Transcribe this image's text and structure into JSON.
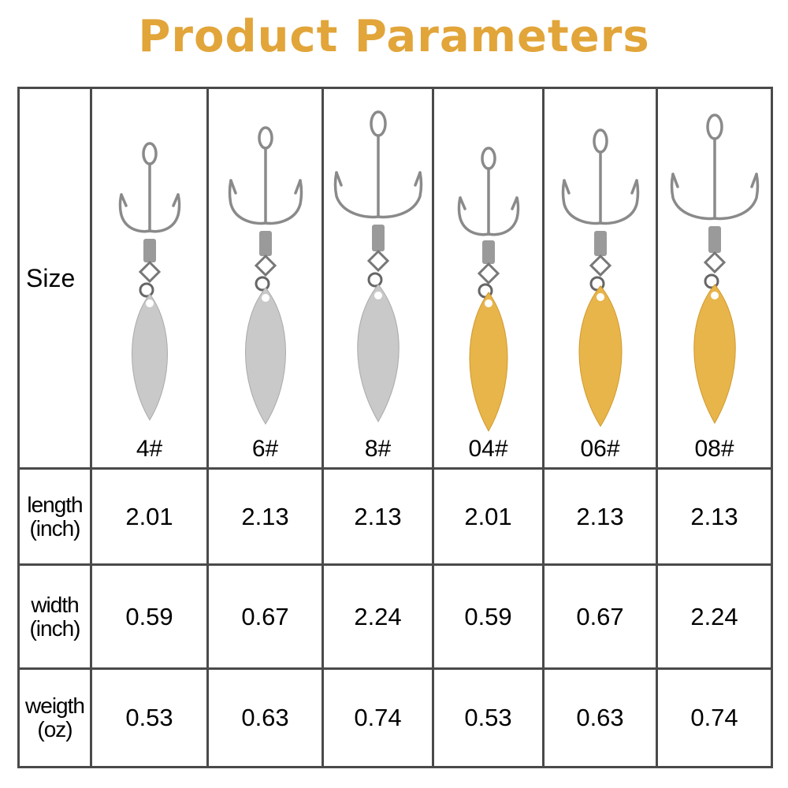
{
  "title": "Product Parameters",
  "colors": {
    "title": "#e2a53a",
    "silver_blade": "#c9c9c9",
    "gold_blade": "#e8b54a",
    "border": "#4a4a4a"
  },
  "row_headers": {
    "size": "Size",
    "length_line1": "length",
    "length_line2": "(inch)",
    "width_line1": "width",
    "width_line2": "(inch)",
    "weight_line1": "weigth",
    "weight_line2": "(oz)"
  },
  "columns": [
    {
      "size": "4#",
      "finish": "silver",
      "length": "2.01",
      "width": "0.59",
      "weight": "0.53"
    },
    {
      "size": "6#",
      "finish": "silver",
      "length": "2.13",
      "width": "0.67",
      "weight": "0.63"
    },
    {
      "size": "8#",
      "finish": "silver",
      "length": "2.13",
      "width": "2.24",
      "weight": "0.74"
    },
    {
      "size": "04#",
      "finish": "gold",
      "length": "2.01",
      "width": "0.59",
      "weight": "0.53"
    },
    {
      "size": "06#",
      "finish": "gold",
      "length": "2.13",
      "width": "0.67",
      "weight": "0.63"
    },
    {
      "size": "08#",
      "finish": "gold",
      "length": "2.13",
      "width": "2.24",
      "weight": "0.74"
    }
  ]
}
